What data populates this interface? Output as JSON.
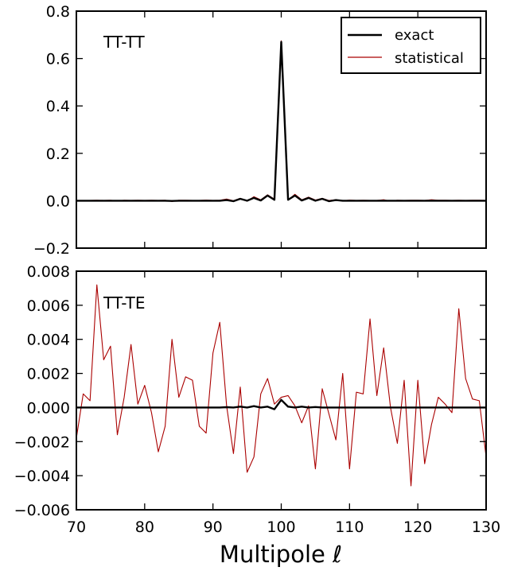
{
  "chart_data": [
    {
      "type": "line",
      "panel_label": "TT-TT",
      "ylim": [
        -0.2,
        0.8
      ],
      "xlim": [
        70,
        130
      ],
      "yticks": [
        -0.2,
        0.0,
        0.2,
        0.4,
        0.6,
        0.8
      ],
      "ytick_labels": [
        "−0.2",
        "0.0",
        "0.2",
        "0.4",
        "0.6",
        "0.8"
      ],
      "grid": false,
      "legend": "top-right",
      "x": [
        70,
        71,
        72,
        73,
        74,
        75,
        76,
        77,
        78,
        79,
        80,
        81,
        82,
        83,
        84,
        85,
        86,
        87,
        88,
        89,
        90,
        91,
        92,
        93,
        94,
        95,
        96,
        97,
        98,
        99,
        100,
        101,
        102,
        103,
        104,
        105,
        106,
        107,
        108,
        109,
        110,
        111,
        112,
        113,
        114,
        115,
        116,
        117,
        118,
        119,
        120,
        121,
        122,
        123,
        124,
        125,
        126,
        127,
        128,
        129,
        130
      ],
      "series": [
        {
          "name": "exact",
          "color": "#000000",
          "values": [
            0,
            0,
            0,
            0,
            0,
            0,
            0,
            0,
            0,
            0,
            0,
            0,
            0,
            0,
            -0.001,
            0,
            0,
            0,
            0,
            0,
            0,
            0,
            0.003,
            -0.002,
            0.008,
            0,
            0.012,
            0.001,
            0.022,
            0.004,
            0.67,
            0.004,
            0.022,
            0.001,
            0.012,
            0,
            0.008,
            -0.002,
            0.003,
            0,
            0,
            0,
            0,
            0,
            0,
            0,
            0,
            0,
            0,
            0,
            0,
            0,
            0,
            0,
            0,
            0,
            0,
            0,
            0,
            0,
            0
          ]
        },
        {
          "name": "statistical",
          "color": "#aa0000",
          "values": [
            0,
            0.001,
            0.001,
            0.002,
            0.001,
            0.002,
            -0.001,
            0.002,
            0.001,
            0.002,
            0.001,
            0.002,
            0.001,
            0.002,
            -0.003,
            0.002,
            0.002,
            0.001,
            0.001,
            0.003,
            0.001,
            0.002,
            0.007,
            0,
            0.01,
            -0.002,
            0.017,
            0.004,
            0.025,
            0.007,
            0.675,
            0.003,
            0.027,
            0.004,
            0.015,
            0.003,
            0.01,
            0.001,
            0.004,
            -0.001,
            0.003,
            0.001,
            0.002,
            0.001,
            0.001,
            0.004,
            -0.002,
            0.002,
            0.001,
            0.002,
            0.002,
            0.001,
            0.004,
            0.002,
            0.002,
            0.001,
            0.002,
            0.001,
            0.002,
            0.002,
            0.001
          ]
        }
      ]
    },
    {
      "type": "line",
      "panel_label": "TT-TE",
      "ylim": [
        -0.006,
        0.008
      ],
      "xlim": [
        70,
        130
      ],
      "yticks": [
        -0.006,
        -0.004,
        -0.002,
        0.0,
        0.002,
        0.004,
        0.006,
        0.008
      ],
      "ytick_labels": [
        "−0.006",
        "−0.004",
        "−0.002",
        "0.000",
        "0.002",
        "0.004",
        "0.006",
        "0.008"
      ],
      "grid": false,
      "xticks": [
        70,
        80,
        90,
        100,
        110,
        120,
        130
      ],
      "xtick_labels": [
        "70",
        "80",
        "90",
        "100",
        "110",
        "120",
        "130"
      ],
      "xlabel": "Multipole ℓ",
      "x": [
        70,
        71,
        72,
        73,
        74,
        75,
        76,
        77,
        78,
        79,
        80,
        81,
        82,
        83,
        84,
        85,
        86,
        87,
        88,
        89,
        90,
        91,
        92,
        93,
        94,
        95,
        96,
        97,
        98,
        99,
        100,
        101,
        102,
        103,
        104,
        105,
        106,
        107,
        108,
        109,
        110,
        111,
        112,
        113,
        114,
        115,
        116,
        117,
        118,
        119,
        120,
        121,
        122,
        123,
        124,
        125,
        126,
        127,
        128,
        129,
        130
      ],
      "series": [
        {
          "name": "exact",
          "color": "#000000",
          "values": [
            0,
            0,
            0,
            0,
            0,
            0,
            0,
            0,
            0,
            0,
            0,
            0,
            0,
            0,
            0,
            0,
            0,
            0,
            0,
            0,
            0,
            0,
            2e-05,
            0,
            5e-05,
            0,
            8e-05,
            0,
            5e-05,
            -0.0001,
            0.00045,
            5e-05,
            0,
            5e-05,
            0,
            3e-05,
            0,
            0,
            0,
            0,
            0,
            0,
            0,
            0,
            0,
            0,
            0,
            0,
            0,
            0,
            0,
            0,
            0,
            0,
            0,
            0,
            0,
            0,
            0,
            0,
            0
          ]
        },
        {
          "name": "statistical",
          "color": "#aa0000",
          "values": [
            -0.0018,
            0.0008,
            0.0004,
            0.0072,
            0.0028,
            0.0036,
            -0.0016,
            0.0006,
            0.0037,
            0.0002,
            0.0013,
            -0.0003,
            -0.0026,
            -0.0011,
            0.004,
            0.0006,
            0.0018,
            0.0016,
            -0.0011,
            -0.0015,
            0.0032,
            0.005,
            0.0001,
            -0.0027,
            0.0012,
            -0.0038,
            -0.0029,
            0.0008,
            0.0017,
            0.0002,
            0.0006,
            0.0007,
            0.0001,
            -0.0009,
            0.0001,
            -0.0036,
            0.0011,
            -0.0004,
            -0.0019,
            0.002,
            -0.0036,
            0.0009,
            0.0008,
            0.0052,
            0.0007,
            0.0035,
            0.0,
            -0.0021,
            0.0016,
            -0.0046,
            0.0016,
            -0.0033,
            -0.001,
            0.0006,
            0.0002,
            -0.0003,
            0.0058,
            0.0017,
            0.0005,
            0.0004,
            -0.0029
          ]
        }
      ]
    }
  ]
}
